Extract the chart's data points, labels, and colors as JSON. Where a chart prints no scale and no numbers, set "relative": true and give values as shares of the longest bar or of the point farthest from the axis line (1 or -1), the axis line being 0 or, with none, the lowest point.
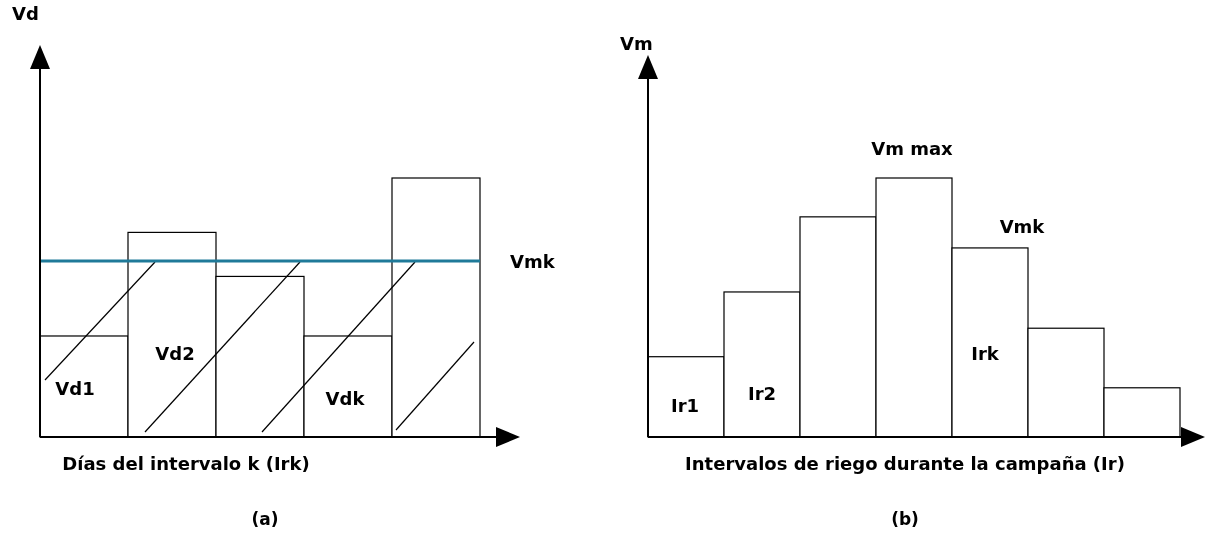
{
  "chart_data": [
    {
      "type": "bar",
      "relative": true,
      "title": "(a)",
      "ylabel": "Vd",
      "xlabel": "Días del intervalo k (Irk)",
      "categories": [
        null,
        null,
        null,
        null,
        null
      ],
      "values": [
        0.39,
        0.79,
        0.62,
        0.39,
        1
      ],
      "color": "#ffffff",
      "ref_lines": [
        {
          "axis": "y",
          "value": 0.68,
          "label": "Vmk",
          "color": "#1f7a99"
        }
      ],
      "annotations": [
        "Vd1",
        "Vd2",
        "Vdk"
      ]
    },
    {
      "type": "bar",
      "relative": true,
      "title": "(b)",
      "ylabel": "Vm",
      "xlabel": "Intervalos de riego durante la campaña (Ir)",
      "categories": [
        null,
        null,
        null,
        null,
        null,
        null,
        null
      ],
      "values": [
        0.31,
        0.56,
        0.85,
        1,
        0.73,
        0.42,
        0.19
      ],
      "color": "#ffffff",
      "annotations": [
        "Vm max",
        "Vmk",
        "Ir1",
        "Ir2",
        "Irk"
      ]
    }
  ]
}
